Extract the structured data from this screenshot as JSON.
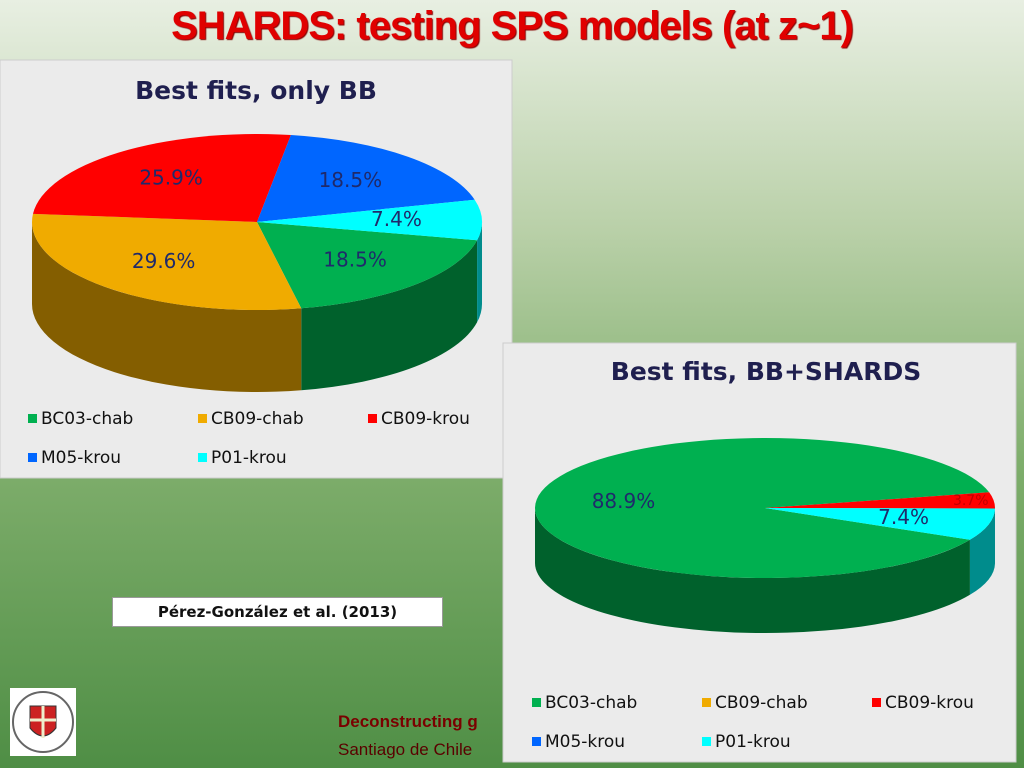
{
  "title": "SHARDS: testing SPS models (at z~1)",
  "citation": "Pérez-González et al.  (2013)",
  "footer": [
    "Deconstructing g",
    "Santiago de Chile"
  ],
  "chart_data": [
    {
      "type": "pie",
      "title": "Best fits, only BB",
      "categories": [
        "BC03-chab",
        "CB09-chab",
        "CB09-krou",
        "M05-krou",
        "P01-krou"
      ],
      "values": [
        18.5,
        29.6,
        25.9,
        18.5,
        7.4
      ],
      "value_labels": [
        "18.5%",
        "29.6%",
        "25.9%",
        "18.5%",
        "7.4%"
      ],
      "colors": [
        "#00b050",
        "#f0ab00",
        "#ff0000",
        "#0066ff",
        "#00ffff"
      ]
    },
    {
      "type": "pie",
      "title": "Best fits, BB+SHARDS",
      "categories": [
        "BC03-chab",
        "CB09-chab",
        "CB09-krou",
        "M05-krou",
        "P01-krou"
      ],
      "values": [
        88.9,
        0,
        3.7,
        0,
        7.4
      ],
      "value_labels": [
        "88.9%",
        null,
        "3.7%",
        null,
        "7.4%"
      ],
      "colors": [
        "#00b050",
        "#f0ab00",
        "#ff0000",
        "#0066ff",
        "#00ffff"
      ]
    }
  ]
}
